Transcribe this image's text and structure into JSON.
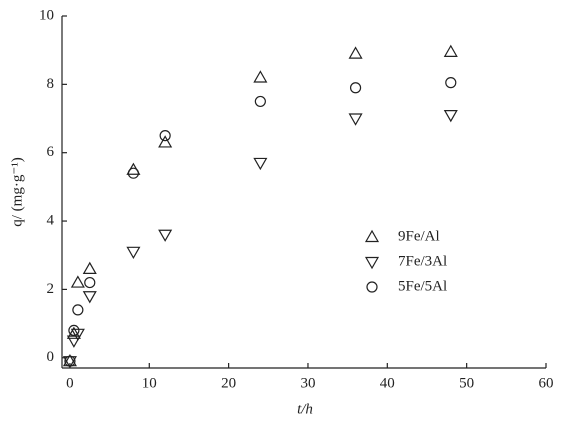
{
  "chart_data": {
    "type": "scatter",
    "x_label": "t/h",
    "y_label": "q/ (mg·g⁻¹)",
    "x": [
      0,
      0.5,
      1,
      2.5,
      8,
      12,
      24,
      36,
      48
    ],
    "series": [
      {
        "name": "9Fe/Al",
        "marker": "triangle-up",
        "color": "#222222",
        "values": [
          -0.1,
          0.7,
          2.2,
          2.6,
          5.5,
          6.3,
          8.2,
          8.9,
          8.95
        ]
      },
      {
        "name": "7Fe/3Al",
        "marker": "triangle-down",
        "color": "#222222",
        "values": [
          -0.1,
          0.5,
          0.7,
          1.8,
          3.1,
          3.6,
          5.7,
          7.0,
          7.1
        ]
      },
      {
        "name": "5Fe/5Al",
        "marker": "circle",
        "color": "#222222",
        "values": [
          -0.1,
          0.8,
          1.4,
          2.2,
          5.4,
          6.5,
          7.5,
          7.9,
          8.05
        ]
      }
    ],
    "xlim": [
      -1,
      60
    ],
    "xticks": [
      0,
      10,
      20,
      30,
      40,
      50,
      60
    ],
    "ylim": [
      -0.3,
      10
    ],
    "yticks": [
      0,
      2,
      4,
      6,
      8,
      10
    ]
  }
}
